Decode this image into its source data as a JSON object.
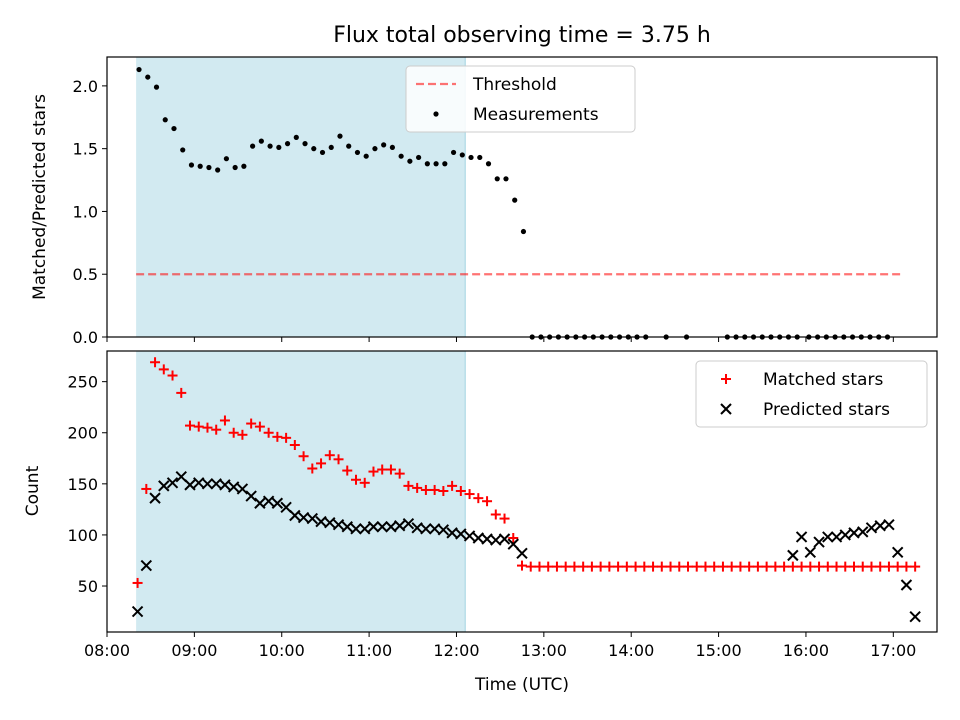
{
  "chart_data": [
    {
      "type": "scatter",
      "title": "Flux total observing time = 3.75 h",
      "xlabel": "",
      "ylabel": "Matched/Predicted stars",
      "ylim": [
        0,
        2.23
      ],
      "yticks": [
        0.0,
        0.5,
        1.0,
        1.5,
        2.0
      ],
      "ytick_labels": [
        "0.0",
        "0.5",
        "1.0",
        "1.5",
        "2.0"
      ],
      "legend_position": "top-center",
      "shaded_interval": {
        "start": "08:20",
        "end": "12:06",
        "color": "#add8e6"
      },
      "series": [
        {
          "name": "Threshold",
          "kind": "dashed-line",
          "color": "#ff0000",
          "x_start": "08:20",
          "x_end": "17:06",
          "y": 0.5
        },
        {
          "name": "Measurements",
          "kind": "dot",
          "color": "#000000",
          "points": [
            [
              "08:22",
              2.13
            ],
            [
              "08:28",
              2.07
            ],
            [
              "08:34",
              1.99
            ],
            [
              "08:40",
              1.73
            ],
            [
              "08:46",
              1.66
            ],
            [
              "08:52",
              1.49
            ],
            [
              "08:58",
              1.37
            ],
            [
              "09:04",
              1.36
            ],
            [
              "09:10",
              1.35
            ],
            [
              "09:16",
              1.33
            ],
            [
              "09:22",
              1.42
            ],
            [
              "09:28",
              1.35
            ],
            [
              "09:34",
              1.36
            ],
            [
              "09:40",
              1.52
            ],
            [
              "09:46",
              1.56
            ],
            [
              "09:52",
              1.52
            ],
            [
              "09:58",
              1.51
            ],
            [
              "10:04",
              1.54
            ],
            [
              "10:10",
              1.59
            ],
            [
              "10:16",
              1.54
            ],
            [
              "10:22",
              1.5
            ],
            [
              "10:28",
              1.47
            ],
            [
              "10:34",
              1.51
            ],
            [
              "10:40",
              1.6
            ],
            [
              "10:46",
              1.52
            ],
            [
              "10:52",
              1.47
            ],
            [
              "10:58",
              1.44
            ],
            [
              "11:04",
              1.5
            ],
            [
              "11:10",
              1.53
            ],
            [
              "11:16",
              1.51
            ],
            [
              "11:22",
              1.44
            ],
            [
              "11:28",
              1.4
            ],
            [
              "11:34",
              1.43
            ],
            [
              "11:40",
              1.38
            ],
            [
              "11:46",
              1.38
            ],
            [
              "11:52",
              1.38
            ],
            [
              "11:58",
              1.47
            ],
            [
              "12:04",
              1.45
            ],
            [
              "12:10",
              1.43
            ],
            [
              "12:16",
              1.43
            ],
            [
              "12:22",
              1.38
            ],
            [
              "12:28",
              1.26
            ],
            [
              "12:34",
              1.26
            ],
            [
              "12:40",
              1.09
            ],
            [
              "12:46",
              0.84
            ],
            [
              "12:52",
              0.0
            ],
            [
              "12:58",
              0.0
            ],
            [
              "13:04",
              0.0
            ],
            [
              "13:10",
              0.0
            ],
            [
              "13:16",
              0.0
            ],
            [
              "13:22",
              0.0
            ],
            [
              "13:28",
              0.0
            ],
            [
              "13:34",
              0.0
            ],
            [
              "13:40",
              0.0
            ],
            [
              "13:46",
              0.0
            ],
            [
              "13:52",
              0.0
            ],
            [
              "13:58",
              0.0
            ],
            [
              "14:04",
              0.0
            ],
            [
              "14:10",
              0.0
            ],
            [
              "14:24",
              0.0
            ],
            [
              "14:38",
              0.0
            ],
            [
              "15:06",
              0.0
            ],
            [
              "15:12",
              0.0
            ],
            [
              "15:18",
              0.0
            ],
            [
              "15:24",
              0.0
            ],
            [
              "15:30",
              0.0
            ],
            [
              "15:36",
              0.0
            ],
            [
              "15:42",
              0.0
            ],
            [
              "15:48",
              0.0
            ],
            [
              "15:54",
              0.0
            ],
            [
              "16:02",
              0.0
            ],
            [
              "16:08",
              0.0
            ],
            [
              "16:14",
              0.0
            ],
            [
              "16:20",
              0.0
            ],
            [
              "16:26",
              0.0
            ],
            [
              "16:32",
              0.0
            ],
            [
              "16:38",
              0.0
            ],
            [
              "16:44",
              0.0
            ],
            [
              "16:50",
              0.0
            ],
            [
              "16:56",
              0.0
            ]
          ]
        }
      ]
    },
    {
      "type": "scatter",
      "title": "",
      "xlabel": "Time (UTC)",
      "ylabel": "Count",
      "ylim": [
        5,
        280
      ],
      "yticks": [
        50,
        100,
        150,
        200,
        250
      ],
      "ytick_labels": [
        "50",
        "100",
        "150",
        "200",
        "250"
      ],
      "xticks": [
        "08:00",
        "09:00",
        "10:00",
        "11:00",
        "12:00",
        "13:00",
        "14:00",
        "15:00",
        "16:00",
        "17:00"
      ],
      "legend_position": "top-right",
      "shaded_interval": {
        "start": "08:20",
        "end": "12:06",
        "color": "#add8e6"
      },
      "series": [
        {
          "name": "Matched stars",
          "kind": "plus",
          "color": "#ff0000",
          "points": [
            [
              "08:21",
              53
            ],
            [
              "08:27",
              145
            ],
            [
              "08:33",
              269
            ],
            [
              "08:39",
              262
            ],
            [
              "08:45",
              256
            ],
            [
              "08:51",
              239
            ],
            [
              "08:57",
              207
            ],
            [
              "09:03",
              206
            ],
            [
              "09:09",
              205
            ],
            [
              "09:15",
              203
            ],
            [
              "09:21",
              212
            ],
            [
              "09:27",
              200
            ],
            [
              "09:33",
              198
            ],
            [
              "09:39",
              209
            ],
            [
              "09:45",
              206
            ],
            [
              "09:51",
              200
            ],
            [
              "09:57",
              196
            ],
            [
              "10:03",
              195
            ],
            [
              "10:09",
              188
            ],
            [
              "10:15",
              177
            ],
            [
              "10:21",
              165
            ],
            [
              "10:27",
              170
            ],
            [
              "10:33",
              178
            ],
            [
              "10:39",
              174
            ],
            [
              "10:45",
              163
            ],
            [
              "10:51",
              154
            ],
            [
              "10:57",
              151
            ],
            [
              "11:03",
              162
            ],
            [
              "11:09",
              164
            ],
            [
              "11:15",
              164
            ],
            [
              "11:21",
              160
            ],
            [
              "11:27",
              148
            ],
            [
              "11:33",
              146
            ],
            [
              "11:39",
              144
            ],
            [
              "11:45",
              144
            ],
            [
              "11:51",
              143
            ],
            [
              "11:57",
              148
            ],
            [
              "12:03",
              143
            ],
            [
              "12:09",
              140
            ],
            [
              "12:15",
              136
            ],
            [
              "12:21",
              133
            ],
            [
              "12:27",
              120
            ],
            [
              "12:33",
              116
            ],
            [
              "12:39",
              97
            ],
            [
              "12:45",
              70
            ],
            [
              "12:51",
              69
            ],
            [
              "12:57",
              69
            ],
            [
              "13:03",
              69
            ],
            [
              "13:09",
              69
            ],
            [
              "13:15",
              69
            ],
            [
              "13:21",
              69
            ],
            [
              "13:27",
              69
            ],
            [
              "13:33",
              69
            ],
            [
              "13:39",
              69
            ],
            [
              "13:45",
              69
            ],
            [
              "13:51",
              69
            ],
            [
              "13:57",
              69
            ],
            [
              "14:03",
              69
            ],
            [
              "14:09",
              69
            ],
            [
              "14:15",
              69
            ],
            [
              "14:21",
              69
            ],
            [
              "14:27",
              69
            ],
            [
              "14:33",
              69
            ],
            [
              "14:39",
              69
            ],
            [
              "14:45",
              69
            ],
            [
              "14:51",
              69
            ],
            [
              "14:57",
              69
            ],
            [
              "15:03",
              69
            ],
            [
              "15:09",
              69
            ],
            [
              "15:15",
              69
            ],
            [
              "15:21",
              69
            ],
            [
              "15:27",
              69
            ],
            [
              "15:33",
              69
            ],
            [
              "15:39",
              69
            ],
            [
              "15:45",
              69
            ],
            [
              "15:51",
              69
            ],
            [
              "15:57",
              69
            ],
            [
              "16:03",
              69
            ],
            [
              "16:09",
              69
            ],
            [
              "16:15",
              69
            ],
            [
              "16:21",
              69
            ],
            [
              "16:27",
              69
            ],
            [
              "16:33",
              69
            ],
            [
              "16:39",
              69
            ],
            [
              "16:45",
              69
            ],
            [
              "16:51",
              69
            ],
            [
              "16:57",
              69
            ],
            [
              "17:03",
              69
            ],
            [
              "17:09",
              69
            ],
            [
              "17:15",
              69
            ]
          ]
        },
        {
          "name": "Predicted stars",
          "kind": "x",
          "color": "#000000",
          "points": [
            [
              "08:21",
              25
            ],
            [
              "08:27",
              70
            ],
            [
              "08:33",
              136
            ],
            [
              "08:39",
              148
            ],
            [
              "08:45",
              151
            ],
            [
              "08:51",
              157
            ],
            [
              "08:57",
              149
            ],
            [
              "09:03",
              151
            ],
            [
              "09:09",
              150
            ],
            [
              "09:15",
              150
            ],
            [
              "09:21",
              149
            ],
            [
              "09:27",
              147
            ],
            [
              "09:33",
              145
            ],
            [
              "09:39",
              138
            ],
            [
              "09:45",
              131
            ],
            [
              "09:51",
              133
            ],
            [
              "09:57",
              131
            ],
            [
              "10:03",
              127
            ],
            [
              "10:09",
              119
            ],
            [
              "10:15",
              117
            ],
            [
              "10:21",
              116
            ],
            [
              "10:27",
              113
            ],
            [
              "10:33",
              112
            ],
            [
              "10:39",
              110
            ],
            [
              "10:45",
              108
            ],
            [
              "10:51",
              106
            ],
            [
              "10:57",
              106
            ],
            [
              "11:03",
              108
            ],
            [
              "11:09",
              108
            ],
            [
              "11:15",
              108
            ],
            [
              "11:21",
              109
            ],
            [
              "11:27",
              111
            ],
            [
              "11:33",
              107
            ],
            [
              "11:39",
              106
            ],
            [
              "11:45",
              106
            ],
            [
              "11:51",
              105
            ],
            [
              "11:57",
              102
            ],
            [
              "12:03",
              101
            ],
            [
              "12:09",
              99
            ],
            [
              "12:15",
              97
            ],
            [
              "12:21",
              96
            ],
            [
              "12:27",
              95
            ],
            [
              "12:33",
              96
            ],
            [
              "12:39",
              91
            ],
            [
              "12:45",
              82
            ],
            [
              "15:51",
              80
            ],
            [
              "15:57",
              98
            ],
            [
              "16:03",
              83
            ],
            [
              "16:09",
              93
            ],
            [
              "16:15",
              98
            ],
            [
              "16:21",
              98
            ],
            [
              "16:27",
              100
            ],
            [
              "16:33",
              102
            ],
            [
              "16:39",
              103
            ],
            [
              "16:45",
              107
            ],
            [
              "16:51",
              109
            ],
            [
              "16:57",
              110
            ],
            [
              "17:03",
              83
            ],
            [
              "17:09",
              51
            ],
            [
              "17:15",
              20
            ]
          ]
        }
      ]
    }
  ]
}
